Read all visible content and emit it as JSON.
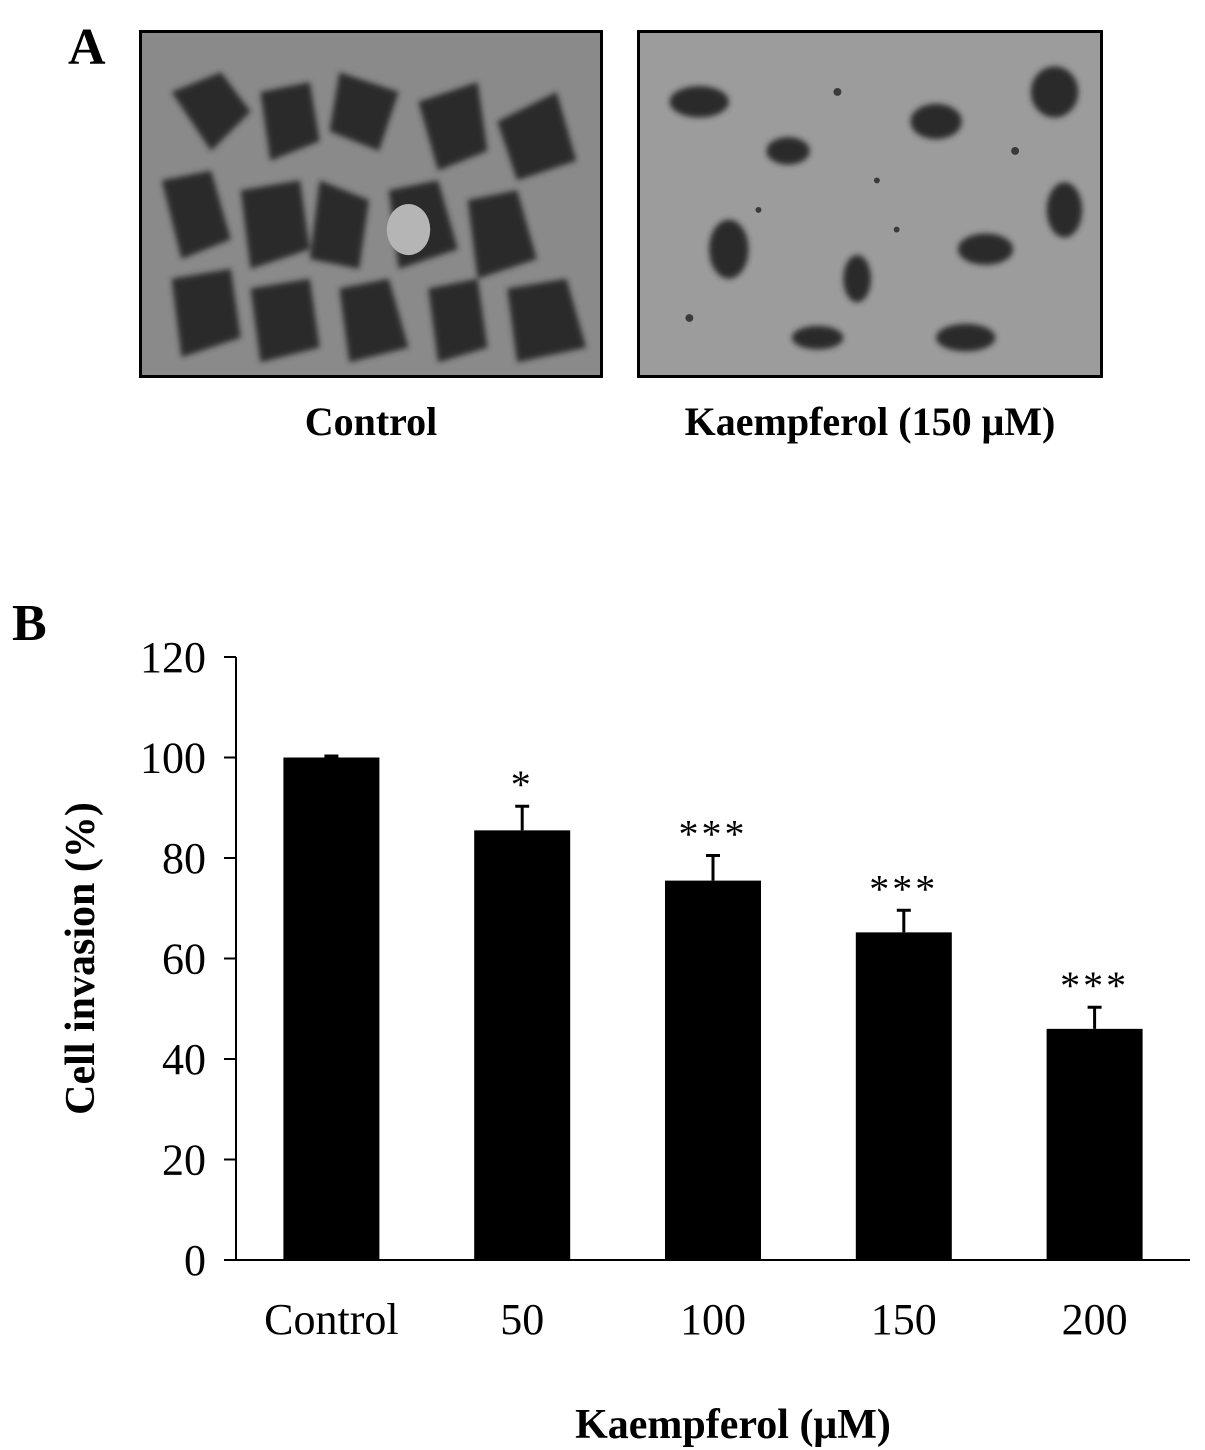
{
  "panel_a": {
    "letter": "A",
    "images": [
      {
        "label": "Control"
      },
      {
        "label": "Kaempferol (150 μM)"
      }
    ]
  },
  "panel_b": {
    "letter": "B"
  },
  "chart_data": {
    "type": "bar",
    "categories": [
      "Control",
      "50",
      "100",
      "150",
      "200"
    ],
    "values": [
      100,
      85.5,
      75.5,
      65.2,
      46.0
    ],
    "errors": [
      0.3,
      4.8,
      5.0,
      4.4,
      4.3
    ],
    "significance": [
      "",
      "*",
      "***",
      "***",
      "***"
    ],
    "xlabel": "Kaempferol (μM)",
    "ylabel": "Cell invasion (%)",
    "ylim": [
      0,
      120
    ],
    "yticks": [
      0,
      20,
      40,
      60,
      80,
      100,
      120
    ],
    "bar_color": "#000000",
    "grid": false,
    "legend": "none"
  }
}
